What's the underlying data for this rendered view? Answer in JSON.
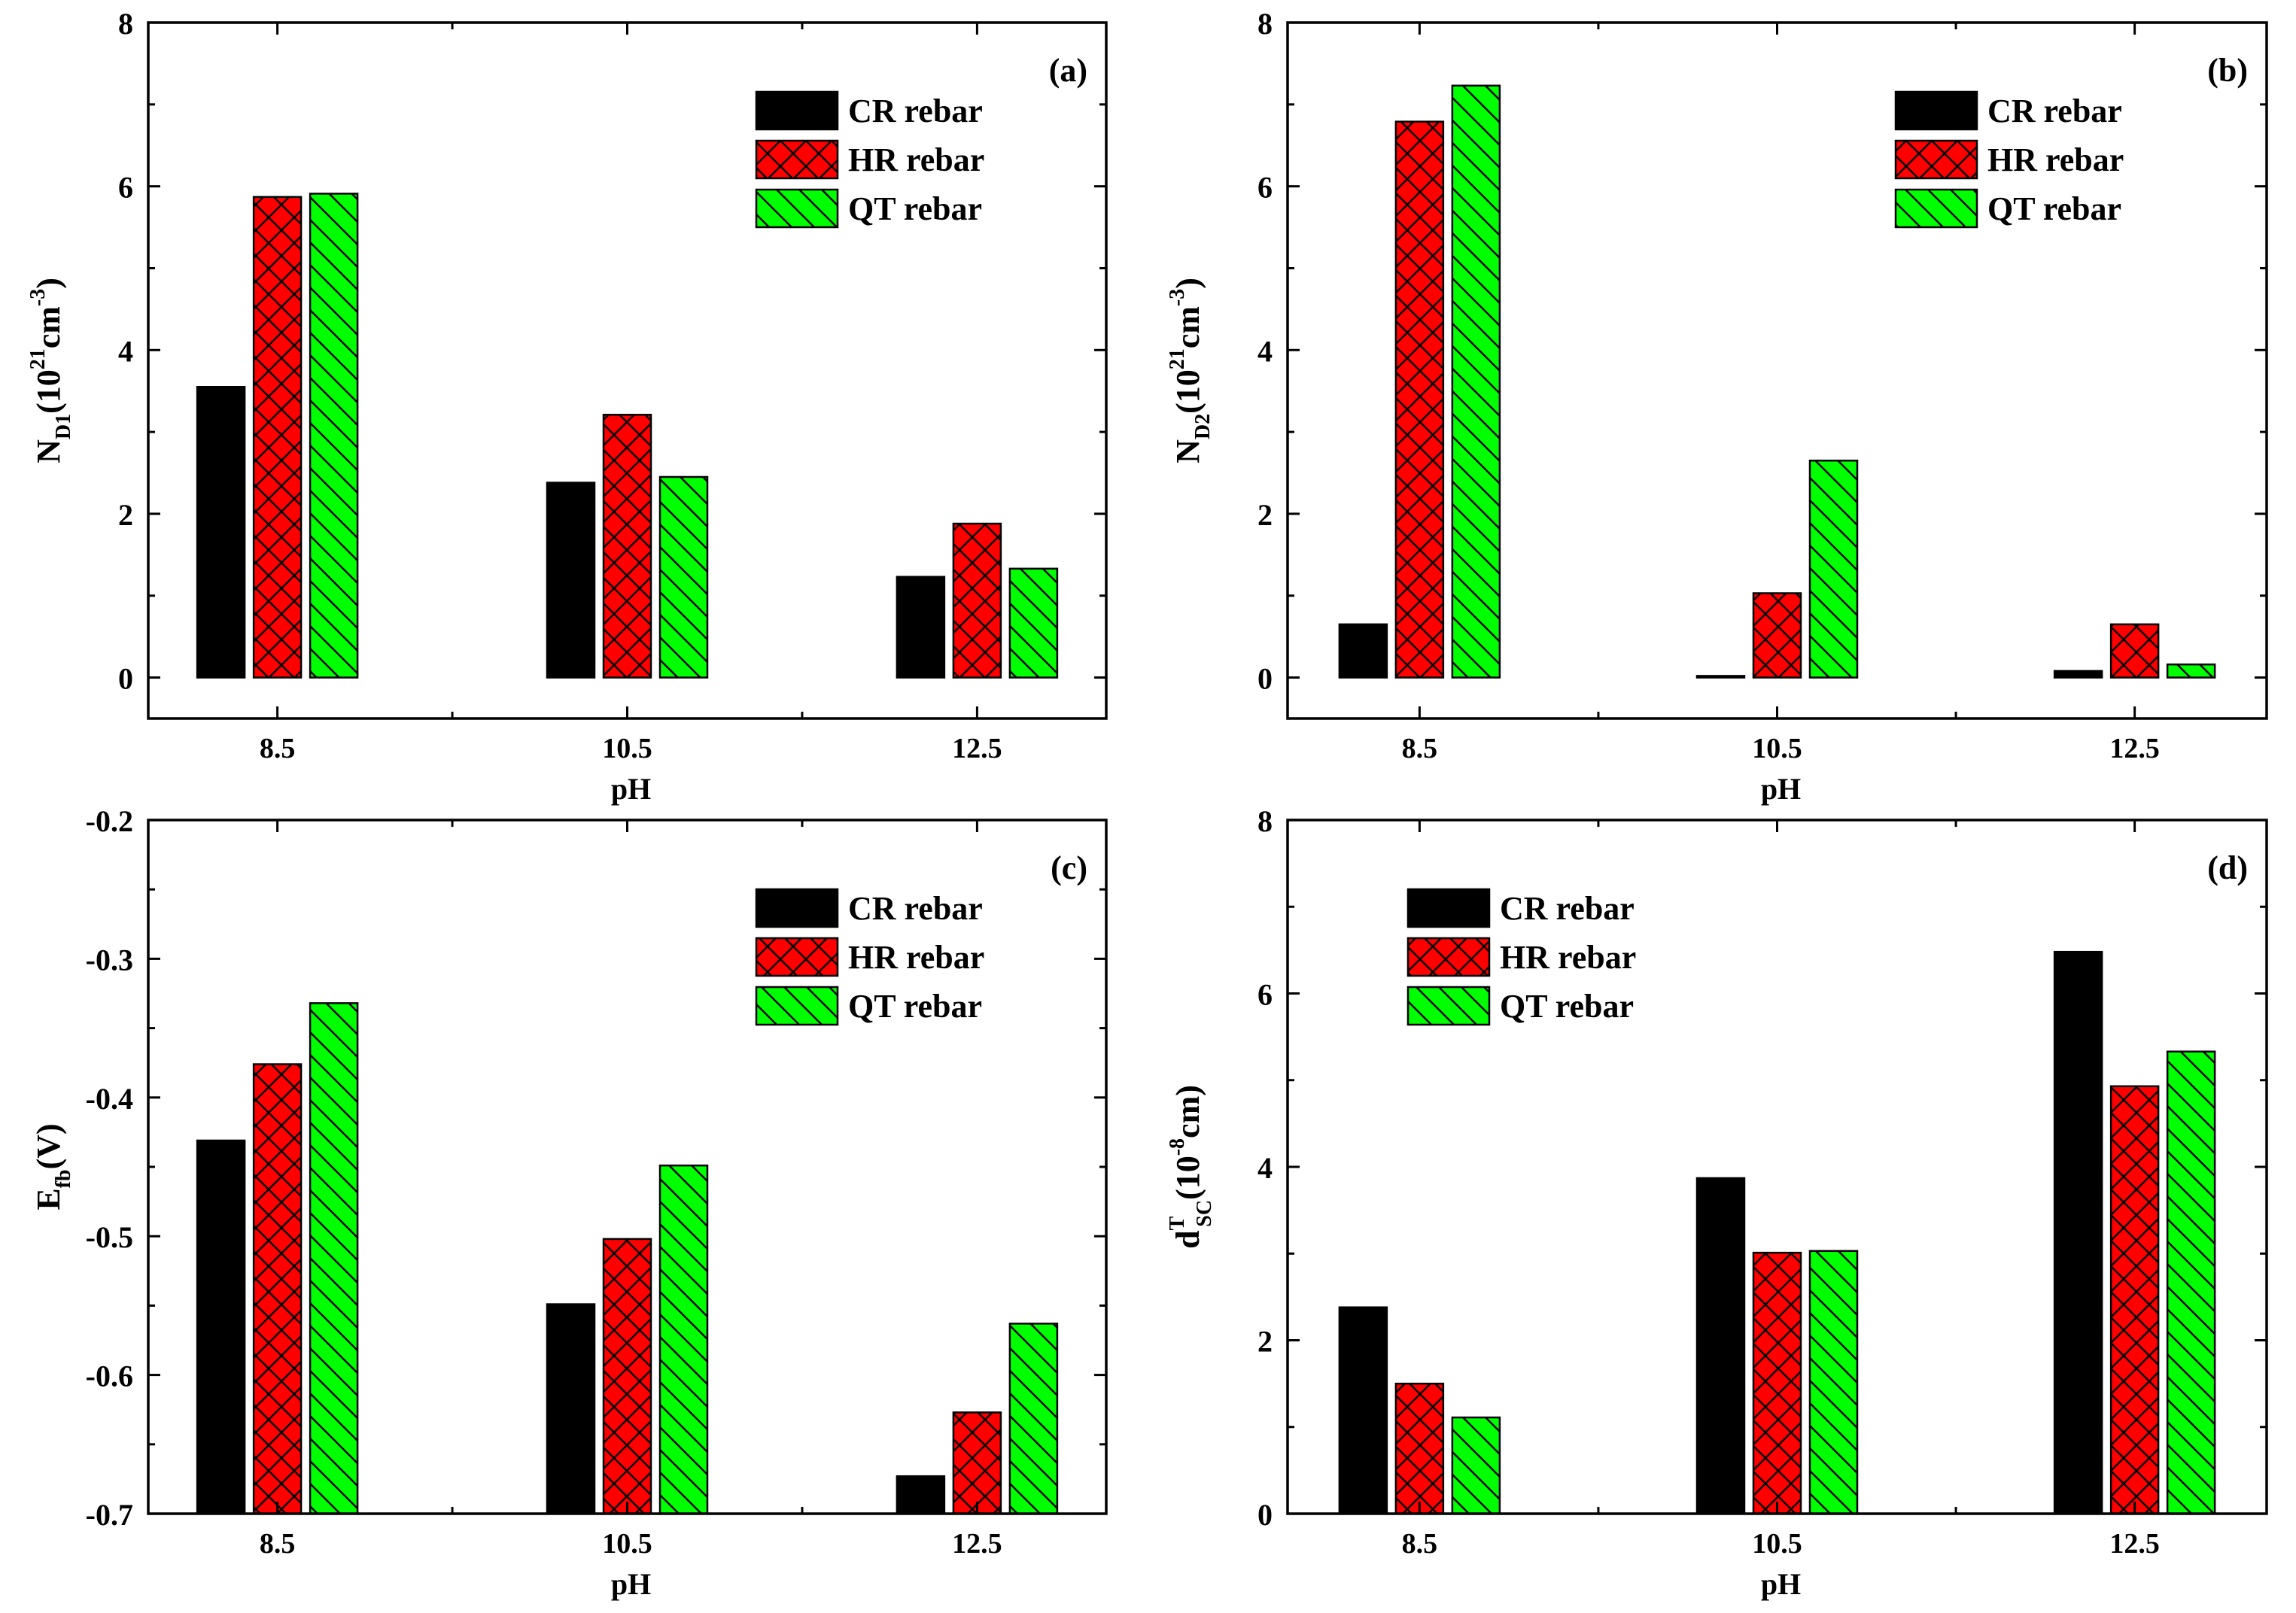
{
  "colors": {
    "cr": "#000000",
    "hr": "#ff0000",
    "qt": "#00ff00"
  },
  "chart_data": [
    {
      "id": "a",
      "type": "bar",
      "panel_label": "(a)",
      "categories": [
        "8.5",
        "10.5",
        "12.5"
      ],
      "xlabel": "pH",
      "ylabel": {
        "base": "N",
        "sub": "D1",
        "tail": "(10",
        "sup1": "21",
        "mid": "cm",
        "sup2": "-3",
        "close": ")"
      },
      "ylim": [
        -0.5,
        8
      ],
      "yticks": [
        0,
        2,
        4,
        6,
        8
      ],
      "ytick_labels": [
        "0",
        "2",
        "4",
        "6",
        "8"
      ],
      "legend_position": "top-right",
      "series": [
        {
          "name": "CR rebar",
          "values": [
            3.55,
            2.38,
            1.23
          ]
        },
        {
          "name": "HR rebar",
          "values": [
            5.87,
            3.21,
            1.88
          ]
        },
        {
          "name": "QT rebar",
          "values": [
            5.91,
            2.45,
            1.33
          ]
        }
      ]
    },
    {
      "id": "b",
      "type": "bar",
      "panel_label": "(b)",
      "categories": [
        "8.5",
        "10.5",
        "12.5"
      ],
      "xlabel": "pH",
      "ylabel": {
        "base": "N",
        "sub": "D2",
        "tail": "(10",
        "sup1": "21",
        "mid": "cm",
        "sup2": "-3",
        "close": ")"
      },
      "ylim": [
        -0.5,
        8
      ],
      "yticks": [
        0,
        2,
        4,
        6,
        8
      ],
      "ytick_labels": [
        "0",
        "2",
        "4",
        "6",
        "8"
      ],
      "legend_position": "top-right",
      "series": [
        {
          "name": "CR rebar",
          "values": [
            0.65,
            0.02,
            0.08
          ]
        },
        {
          "name": "HR rebar",
          "values": [
            6.79,
            1.03,
            0.65
          ]
        },
        {
          "name": "QT rebar",
          "values": [
            7.23,
            2.65,
            0.16
          ]
        }
      ]
    },
    {
      "id": "c",
      "type": "bar",
      "panel_label": "(c)",
      "categories": [
        "8.5",
        "10.5",
        "12.5"
      ],
      "xlabel": "pH",
      "ylabel": {
        "base": "E",
        "sub": "fb",
        "tail": "(V)"
      },
      "ylim": [
        -0.7,
        -0.2
      ],
      "yticks": [
        -0.7,
        -0.6,
        -0.5,
        -0.4,
        -0.3,
        -0.2
      ],
      "ytick_labels": [
        "-0.7",
        "-0.6",
        "-0.5",
        "-0.4",
        "-0.3",
        "-0.2"
      ],
      "legend_position": "top-right",
      "series": [
        {
          "name": "CR rebar",
          "values": [
            -0.431,
            -0.549,
            -0.673
          ]
        },
        {
          "name": "HR rebar",
          "values": [
            -0.376,
            -0.502,
            -0.627
          ]
        },
        {
          "name": "QT rebar",
          "values": [
            -0.332,
            -0.449,
            -0.563
          ]
        }
      ]
    },
    {
      "id": "d",
      "type": "bar",
      "panel_label": "(d)",
      "categories": [
        "8.5",
        "10.5",
        "12.5"
      ],
      "xlabel": "pH",
      "ylabel": {
        "base": "d",
        "supT": "T",
        "sub": "SC",
        "tail": "(10",
        "sup1": "-8",
        "mid": "cm",
        "close": ")"
      },
      "ylim": [
        0,
        8
      ],
      "yticks": [
        0,
        2,
        4,
        6,
        8
      ],
      "ytick_labels": [
        "0",
        "2",
        "4",
        "6",
        "8"
      ],
      "legend_position": "top-left",
      "series": [
        {
          "name": "CR rebar",
          "values": [
            2.38,
            3.87,
            6.48
          ]
        },
        {
          "name": "HR rebar",
          "values": [
            1.5,
            3.01,
            4.93
          ]
        },
        {
          "name": "QT rebar",
          "values": [
            1.11,
            3.03,
            5.33
          ]
        }
      ]
    }
  ]
}
